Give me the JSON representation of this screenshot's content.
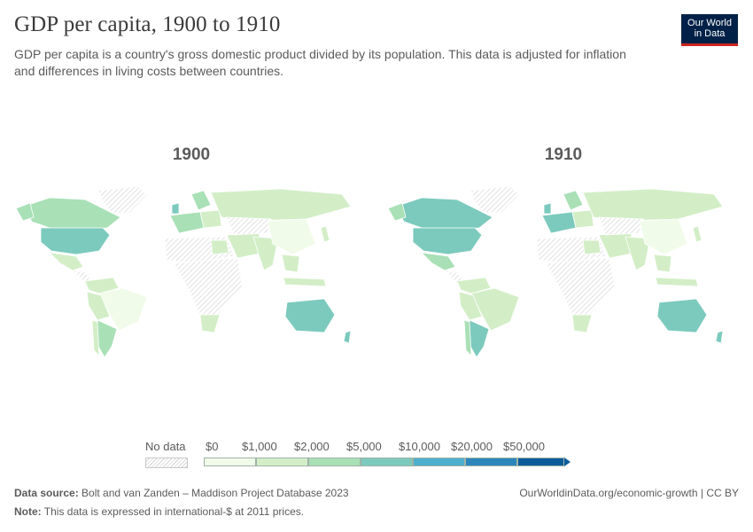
{
  "title": "GDP per capita, 1900 to 1910",
  "subtitle": "GDP per capita is a country's gross domestic product divided by its population. This data is adjusted for inflation and differences in living costs between countries.",
  "logo": {
    "line1": "Our World",
    "line2": "in Data"
  },
  "panels": [
    {
      "year": "1900"
    },
    {
      "year": "1910"
    }
  ],
  "legend": {
    "no_data_label": "No data",
    "tick_labels": [
      "$0",
      "$1,000",
      "$2,000",
      "$5,000",
      "$10,000",
      "$20,000",
      "$50,000"
    ],
    "bin_colors": [
      "#f1fbe9",
      "#d3eec7",
      "#a9e0b6",
      "#7ccabd",
      "#4eafcf",
      "#2c86bc",
      "#0d5c9a"
    ]
  },
  "footer": {
    "source_label": "Data source:",
    "source_text": "Bolt and van Zanden – Maddison Project Database 2023",
    "url": "OurWorldinData.org/economic-growth | CC BY",
    "note_label": "Note:",
    "note_text": "This data is expressed in international-$ at 2011 prices."
  }
}
